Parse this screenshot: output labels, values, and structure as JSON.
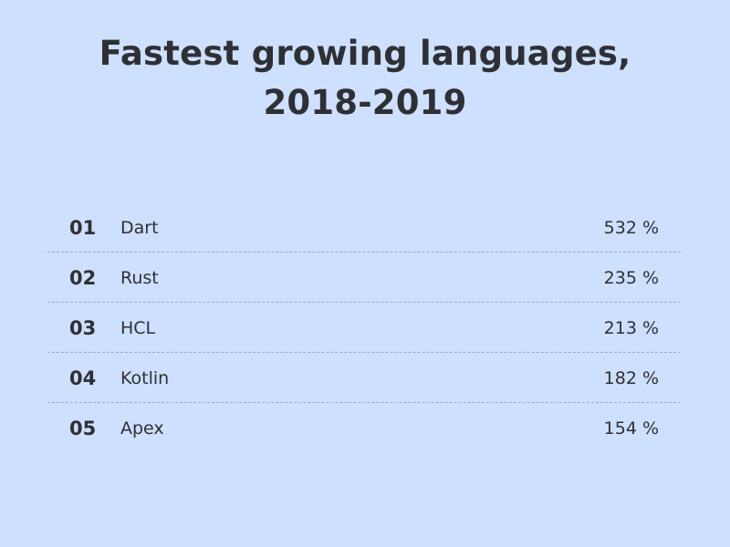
{
  "chart_data": {
    "type": "table",
    "title_line1": "Fastest growing languages,",
    "title_line2": "2018-2019",
    "rows": [
      {
        "rank": "01",
        "language": "Dart",
        "growth": "532 %"
      },
      {
        "rank": "02",
        "language": "Rust",
        "growth": "235 %"
      },
      {
        "rank": "03",
        "language": "HCL",
        "growth": "213 %"
      },
      {
        "rank": "04",
        "language": "Kotlin",
        "growth": "182 %"
      },
      {
        "rank": "05",
        "language": "Apex",
        "growth": "154 %"
      }
    ],
    "values": [
      532,
      235,
      213,
      182,
      154
    ],
    "unit": "%"
  },
  "colors": {
    "background": "#cde0fd",
    "text": "#2f3034",
    "divider": "#9aaac4"
  }
}
